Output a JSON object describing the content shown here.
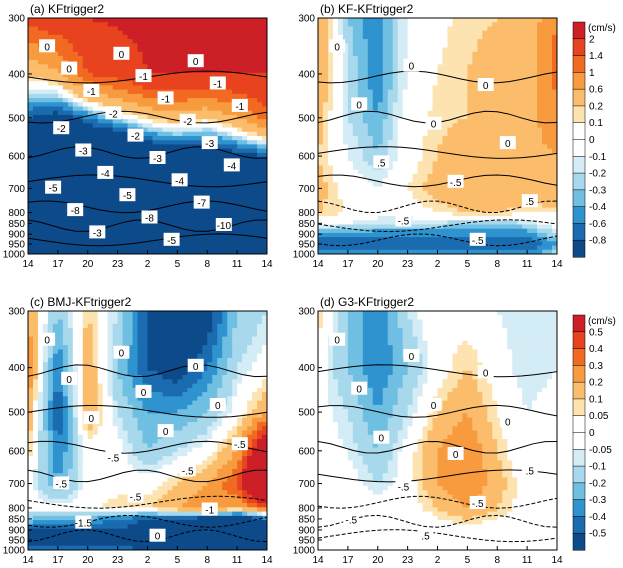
{
  "figure": {
    "y_ticks": [
      "300",
      "400",
      "500",
      "600",
      "700",
      "800",
      "850",
      "900",
      "950",
      "1000"
    ],
    "x_ticks": [
      "14",
      "17",
      "20",
      "23",
      "2",
      "5",
      "8",
      "11",
      "14"
    ]
  },
  "colorbars": [
    {
      "unit": "(cm/s)",
      "labels": [
        "2",
        "1.4",
        "1",
        "0.6",
        "0.2",
        "0.1",
        "0",
        "-0.1",
        "-0.2",
        "-0.3",
        "-0.4",
        "-0.6",
        "-0.8"
      ],
      "colors": [
        "#cc1f26",
        "#e8431f",
        "#f26a21",
        "#f79b3e",
        "#fbbd6b",
        "#fde3b0",
        "#ffffff",
        "#ffffff",
        "#d3ecf5",
        "#a7d8ec",
        "#6fbfe3",
        "#2e93cf",
        "#1a6bb0",
        "#0d4a8a"
      ]
    },
    {
      "unit": "(cm/s)",
      "labels": [
        "0.5",
        "0.4",
        "0.3",
        "0.2",
        "0.1",
        "0.05",
        "0",
        "-0.05",
        "-0.1",
        "-0.2",
        "-0.3",
        "-0.4",
        "-0.5"
      ],
      "colors": [
        "#cc1f26",
        "#e8431f",
        "#f26a21",
        "#f79b3e",
        "#fbbd6b",
        "#fde3b0",
        "#ffffff",
        "#ffffff",
        "#d3ecf5",
        "#a7d8ec",
        "#6fbfe3",
        "#2e93cf",
        "#1a6bb0",
        "#0d4a8a"
      ]
    }
  ],
  "chart_data": [
    {
      "type": "heatmap",
      "title": "(a) KFtrigger2",
      "x": [
        "14",
        "17",
        "20",
        "23",
        "2",
        "5",
        "8",
        "11",
        "14"
      ],
      "y": [
        300,
        400,
        500,
        600,
        700,
        800,
        850,
        900,
        950,
        1000
      ],
      "values": [
        [
          1.6,
          1.8,
          2.0,
          2.1,
          2.2,
          2.2,
          2.2,
          2.2,
          2.0
        ],
        [
          0.2,
          0.5,
          1.4,
          1.6,
          2.0,
          2.0,
          2.0,
          2.0,
          2.0
        ],
        [
          -0.8,
          -1.0,
          -0.6,
          -0.2,
          0.2,
          0.4,
          0.2,
          0.6,
          1.2
        ],
        [
          -1.6,
          -2.0,
          -2.0,
          -2.0,
          -1.4,
          -1.2,
          -1.2,
          -1.0,
          -0.8
        ],
        [
          -2.6,
          -3.0,
          -3.0,
          -3.0,
          -2.4,
          -2.4,
          -2.6,
          -2.2,
          -2.0
        ],
        [
          -3.4,
          -3.6,
          -3.8,
          -4.5,
          -5.0,
          -5.5,
          -4.8,
          -4.2,
          -3.4
        ],
        [
          -3.6,
          -4.0,
          -5.0,
          -6.0,
          -7.0,
          -7.5,
          -6.5,
          -5.5,
          -4.0
        ],
        [
          -3.0,
          -4.0,
          -6.0,
          -8.0,
          -10.0,
          -10.0,
          -9.0,
          -6.0,
          -4.0
        ],
        [
          -2.0,
          -3.0,
          -5.0,
          -7.0,
          -8.0,
          -8.0,
          -7.0,
          -5.0,
          -3.0
        ],
        [
          -1.0,
          -2.0,
          -3.0,
          -4.0,
          -5.0,
          -5.0,
          -4.0,
          -3.0,
          -2.0
        ]
      ],
      "contour_labels": [
        "0",
        "0",
        "0",
        "0",
        "-1",
        "-1",
        "-1",
        "-1",
        "-1",
        "-2",
        "-2",
        "-2",
        "-2",
        "-3",
        "-3",
        "-3",
        "-4",
        "-4",
        "-4",
        "-5",
        "-5",
        "-7",
        "-8",
        "-8",
        "-10",
        "-3",
        "-5"
      ]
    },
    {
      "type": "heatmap",
      "title": "(b) KF-KFtrigger2",
      "x": [
        "14",
        "17",
        "20",
        "23",
        "2",
        "5",
        "8",
        "11",
        "14"
      ],
      "y": [
        300,
        400,
        500,
        600,
        700,
        800,
        850,
        900,
        950,
        1000
      ],
      "values": [
        [
          0.4,
          -0.3,
          -0.5,
          -0.1,
          0.05,
          0.15,
          0.2,
          0.3,
          1.0
        ],
        [
          0.4,
          -0.2,
          -0.5,
          -0.1,
          0.1,
          0.2,
          0.3,
          0.4,
          1.2
        ],
        [
          0.3,
          -0.2,
          -0.4,
          0.0,
          0.15,
          0.2,
          0.4,
          0.5,
          0.8
        ],
        [
          0.2,
          -0.1,
          -0.3,
          0.0,
          0.2,
          0.4,
          0.5,
          0.5,
          0.6
        ],
        [
          0.3,
          0.0,
          -0.1,
          0.1,
          0.3,
          0.5,
          0.6,
          0.4,
          0.5
        ],
        [
          0.2,
          0.1,
          0.0,
          0.0,
          0.1,
          0.2,
          0.2,
          0.1,
          0.1
        ],
        [
          0.0,
          -0.1,
          -0.2,
          -0.2,
          -0.2,
          -0.3,
          -0.3,
          -0.2,
          0.0
        ],
        [
          -0.5,
          -0.5,
          -0.5,
          -0.5,
          -0.5,
          -0.5,
          -0.5,
          -0.5,
          -0.2
        ],
        [
          -0.8,
          -0.8,
          -0.8,
          -0.8,
          -0.8,
          -0.8,
          -0.8,
          -0.8,
          -0.4
        ],
        [
          -0.5,
          -0.5,
          -0.5,
          -0.5,
          -0.5,
          -0.5,
          -0.5,
          -0.5,
          -0.2
        ]
      ],
      "contour_labels": [
        "0",
        "0",
        "0",
        "0",
        "0",
        "0",
        ".5",
        "-.5",
        ".5",
        "-.5",
        "-.5"
      ]
    },
    {
      "type": "heatmap",
      "title": "(c) BMJ-KFtrigger2",
      "x": [
        "14",
        "17",
        "20",
        "23",
        "2",
        "5",
        "8",
        "11",
        "14"
      ],
      "y": [
        300,
        400,
        500,
        600,
        700,
        800,
        850,
        900,
        950,
        1000
      ],
      "values": [
        [
          0.2,
          -0.2,
          0.1,
          -0.1,
          -0.5,
          -0.8,
          -0.6,
          -0.2,
          -0.1
        ],
        [
          0.3,
          -0.4,
          0.2,
          -0.2,
          -0.5,
          -0.6,
          -0.4,
          -0.1,
          0.0
        ],
        [
          0.2,
          -0.5,
          0.2,
          -0.1,
          -0.3,
          -0.3,
          -0.2,
          0.0,
          0.2
        ],
        [
          0.1,
          -0.4,
          0.0,
          0.0,
          -0.2,
          -0.1,
          0.0,
          0.2,
          0.8
        ],
        [
          0.0,
          -0.3,
          0.0,
          0.0,
          0.0,
          0.1,
          0.2,
          0.4,
          1.2
        ],
        [
          0.0,
          0.0,
          0.0,
          0.1,
          0.1,
          0.2,
          0.3,
          0.2,
          0.4
        ],
        [
          -0.2,
          -0.3,
          -0.3,
          -0.4,
          -0.5,
          -0.5,
          -0.6,
          -0.8,
          -0.4
        ],
        [
          -0.5,
          -0.5,
          -0.5,
          -0.5,
          -0.6,
          -0.8,
          -1.0,
          -1.5,
          -0.8
        ],
        [
          -0.6,
          -0.6,
          -0.6,
          -0.6,
          -0.8,
          -1.0,
          -1.2,
          -1.6,
          -1.0
        ],
        [
          -0.4,
          -0.4,
          -0.4,
          -0.4,
          -0.5,
          -0.6,
          -0.8,
          -1.0,
          -0.6
        ]
      ],
      "contour_labels": [
        "0",
        "0",
        "0",
        "0",
        "0",
        "0",
        "0",
        "0",
        "-.5",
        "-.5",
        "-.5",
        "-.5",
        "-.5",
        "-1",
        "-1.5",
        "0"
      ]
    },
    {
      "type": "heatmap",
      "title": "(d) G3-KFtrigger2",
      "x": [
        "14",
        "17",
        "20",
        "23",
        "2",
        "5",
        "8",
        "11",
        "14"
      ],
      "y": [
        300,
        400,
        500,
        600,
        700,
        800,
        850,
        900,
        950,
        1000
      ],
      "values": [
        [
          0.1,
          -0.2,
          -0.4,
          -0.1,
          0.05,
          0.0,
          -0.05,
          -0.1,
          -0.05
        ],
        [
          0.0,
          -0.2,
          -0.4,
          -0.2,
          0.0,
          0.1,
          0.0,
          -0.1,
          -0.05
        ],
        [
          0.0,
          -0.1,
          -0.3,
          -0.1,
          0.1,
          0.2,
          0.05,
          -0.05,
          0.0
        ],
        [
          0.0,
          -0.05,
          -0.2,
          0.0,
          0.2,
          0.3,
          0.1,
          -0.05,
          0.0
        ],
        [
          0.0,
          0.0,
          -0.1,
          0.0,
          0.2,
          0.3,
          0.15,
          0.0,
          0.0
        ],
        [
          0.0,
          0.0,
          0.0,
          0.0,
          0.1,
          0.2,
          0.1,
          0.0,
          0.0
        ],
        [
          0.0,
          0.0,
          0.0,
          -0.05,
          0.05,
          0.1,
          0.05,
          0.0,
          0.0
        ],
        [
          0.0,
          0.0,
          0.0,
          -0.05,
          0.0,
          0.0,
          0.0,
          0.0,
          0.0
        ],
        [
          0.0,
          0.0,
          0.0,
          0.0,
          0.0,
          0.0,
          0.0,
          0.0,
          0.0
        ],
        [
          0.0,
          0.0,
          0.0,
          0.0,
          0.0,
          0.0,
          0.0,
          0.0,
          0.0
        ]
      ],
      "contour_labels": [
        "0",
        "0",
        "0",
        "0",
        "0",
        "0",
        "0",
        "0",
        ".5",
        "-.5",
        "-.5",
        "-.5",
        ".5"
      ]
    }
  ]
}
